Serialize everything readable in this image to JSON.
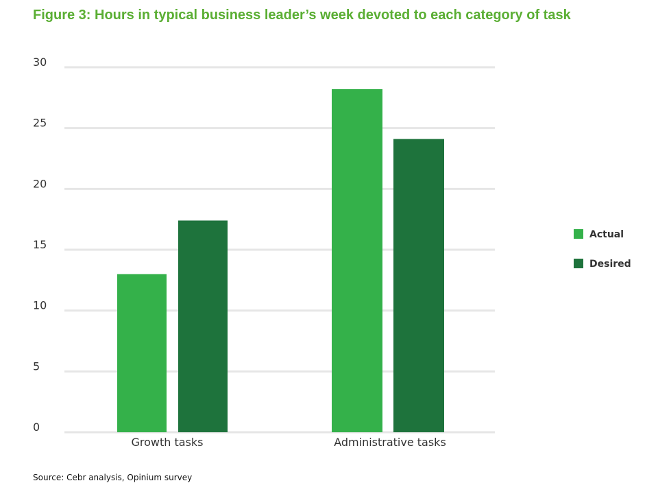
{
  "title": "Figure 3: Hours in typical business leader’s week devoted to each category of task",
  "source": "Source: Cebr analysis, Opinium survey",
  "colors": {
    "actual": "#34b14a",
    "desired": "#1e733c",
    "grid": "#e6e6e6",
    "title": "#5aae33"
  },
  "chart_data": {
    "type": "bar",
    "title": "Figure 3: Hours in typical business leader’s week devoted to each category of task",
    "xlabel": "",
    "ylabel": "",
    "categories": [
      "Growth tasks",
      "Administrative tasks"
    ],
    "series": [
      {
        "name": "Actual",
        "values": [
          13,
          28.2
        ]
      },
      {
        "name": "Desired",
        "values": [
          17.4,
          24.1
        ]
      }
    ],
    "ylim": [
      0,
      30
    ],
    "yticks": [
      0,
      5,
      10,
      15,
      20,
      25,
      30
    ],
    "grid": true,
    "legend": "right"
  }
}
